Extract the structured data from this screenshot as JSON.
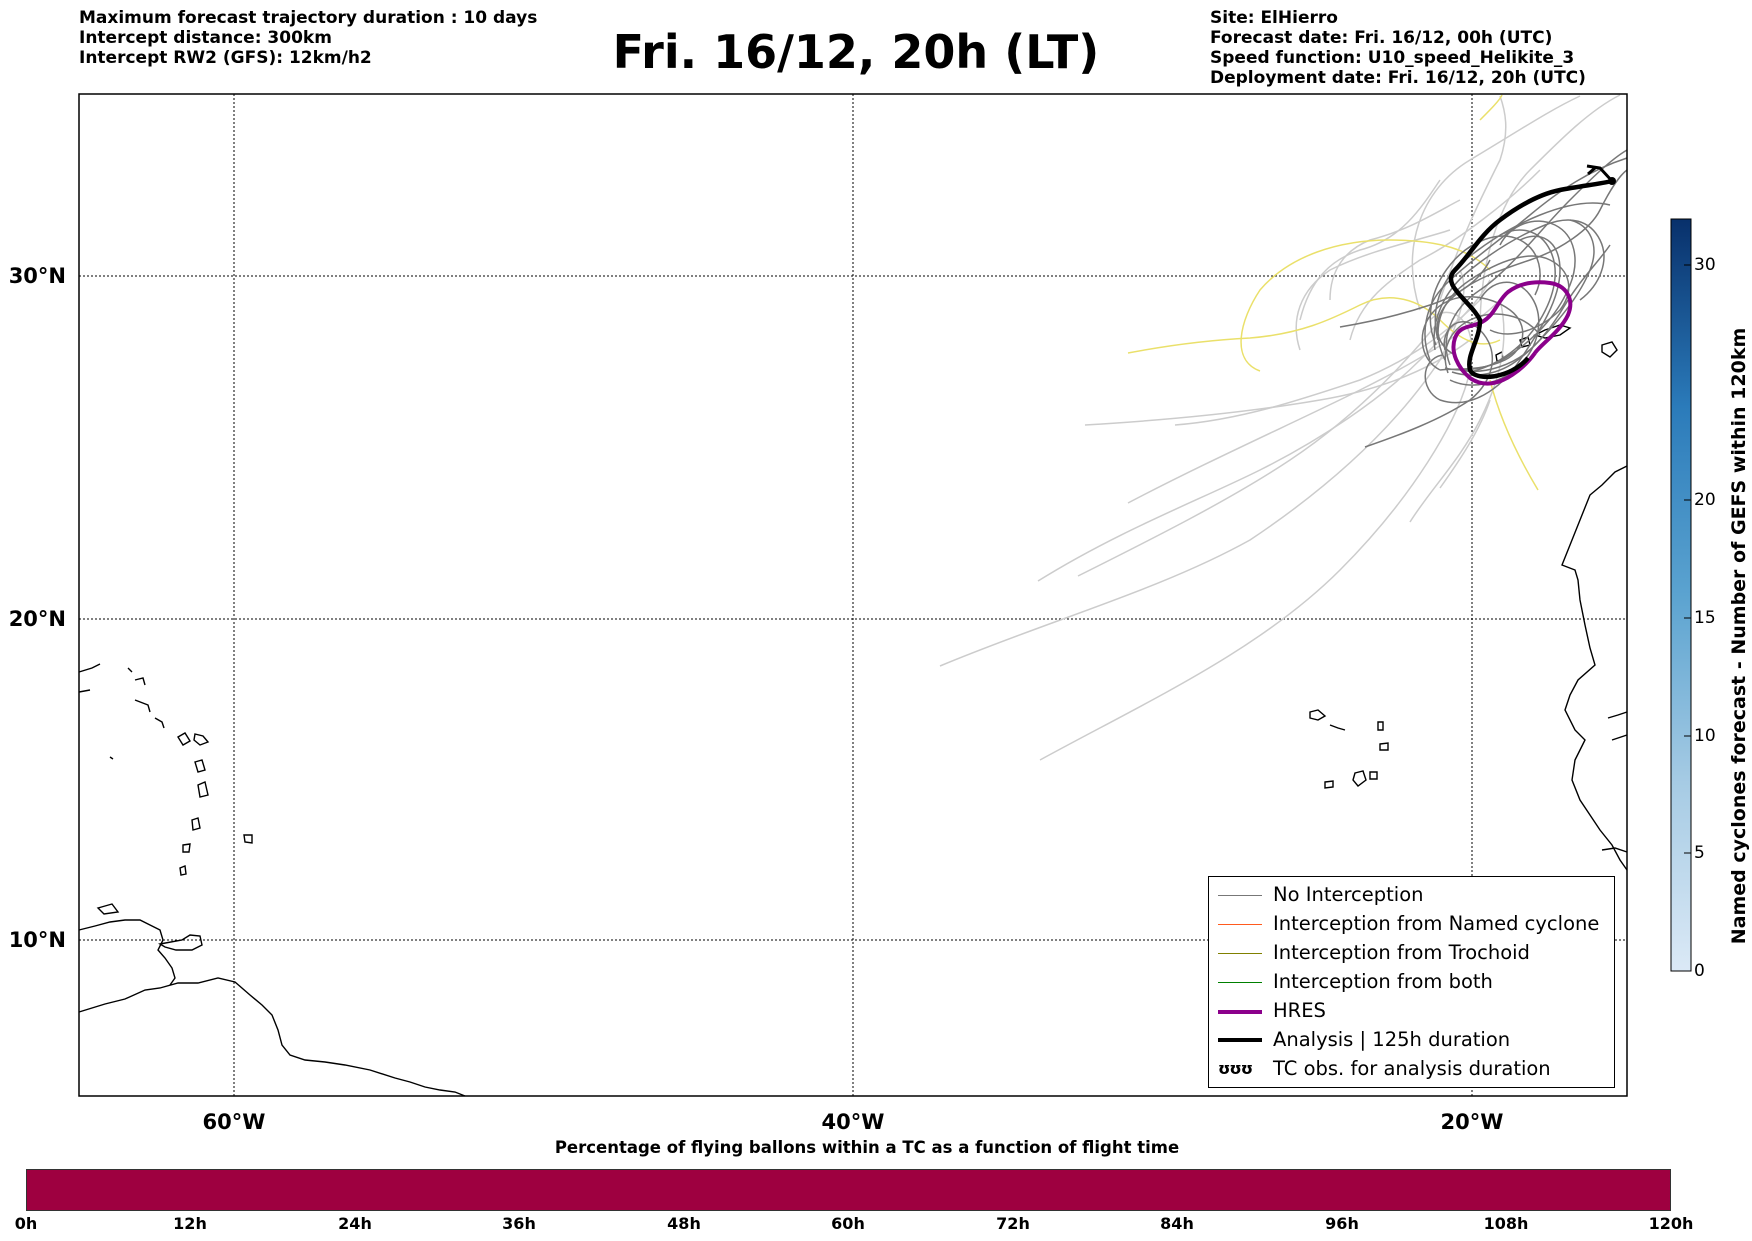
{
  "header_left": [
    "Maximum forecast trajectory duration : 10 days",
    "Intercept distance: 300km",
    "Intercept RW2 (GFS):  12km/h2"
  ],
  "title": "Fri. 16/12, 20h (LT)",
  "header_right": [
    "Site: ElHierro",
    "Forecast date: Fri. 16/12, 00h (UTC)",
    "Speed function: U10_speed_Helikite_3",
    "Deployment date: Fri. 16/12, 20h (UTC)"
  ],
  "map": {
    "lon_ticks": [
      "60°W",
      "40°W",
      "20°W"
    ],
    "lat_ticks": [
      "30°N",
      "20°N",
      "10°N"
    ],
    "lon_range": [
      -65,
      -15
    ],
    "lat_range": [
      5.5,
      34.7
    ]
  },
  "legend": {
    "no_interception": "No Interception",
    "named_cyclone": "Interception from Named cyclone",
    "trochoid": "Interception from Trochoid",
    "both": "Interception from both",
    "hres": "HRES",
    "analysis": "Analysis | 125h duration",
    "tc_obs": "TC obs. for analysis duration",
    "tc_symbol": "ʊʊʊ"
  },
  "colorbar": {
    "label": "Named cyclones forecast - Number of GEFS within 120km",
    "ticks": [
      "30",
      "20",
      "15",
      "10",
      "5",
      "0"
    ],
    "min": 0,
    "max": 32
  },
  "percentage_bar": {
    "title": "Percentage of flying ballons within a TC as a function of flight time",
    "ticks": [
      "0h",
      "12h",
      "24h",
      "36h",
      "48h",
      "60h",
      "72h",
      "84h",
      "96h",
      "108h",
      "120h"
    ]
  },
  "colors": {
    "no_interception": "#777777",
    "named_cyclone": "#ff5a1e",
    "trochoid": "#808000",
    "both": "#008000",
    "hres": "#8b008b",
    "analysis": "#000000",
    "percentage_bar": "#9e0040",
    "ensemble_light": "#cccccc",
    "yellow_track": "#eae06a"
  }
}
